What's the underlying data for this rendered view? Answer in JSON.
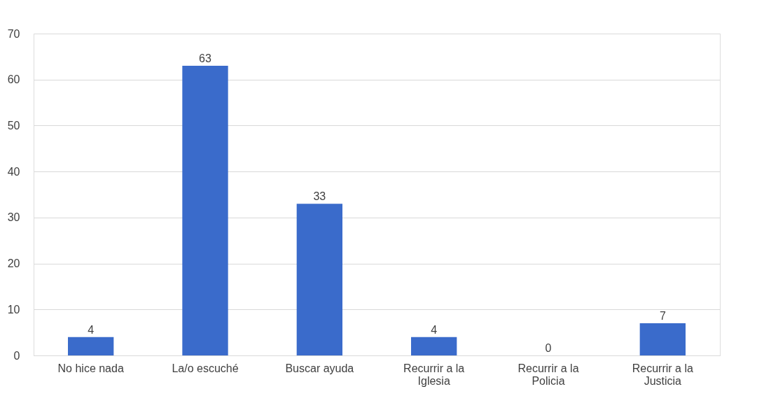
{
  "chart_data": {
    "type": "bar",
    "categories": [
      "No hice nada",
      "La/o escuché",
      "Buscar ayuda",
      "Recurrir a la Iglesia",
      "Recurrir a la Policia",
      "Recurrir a la Justicia"
    ],
    "values": [
      4,
      63,
      33,
      4,
      0,
      7
    ],
    "color": "#3a6bcb",
    "ylim": [
      0,
      70
    ],
    "yticks": [
      0,
      10,
      20,
      30,
      40,
      50,
      60,
      70
    ],
    "grid": "y",
    "data_labels": true
  }
}
